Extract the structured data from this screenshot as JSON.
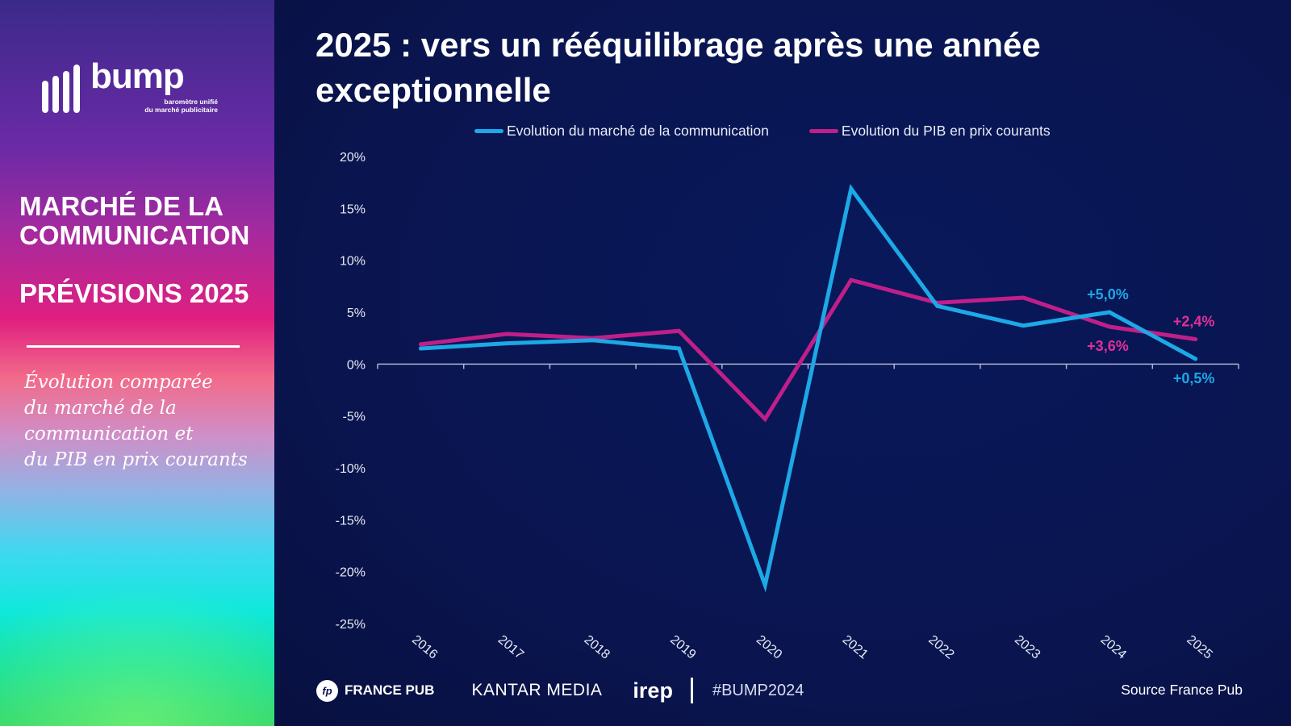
{
  "sidebar": {
    "logo_word": "bump",
    "logo_tagline_1": "baromètre unifié",
    "logo_tagline_2": "du marché publicitaire",
    "heading_line1": "MARCHÉ DE LA",
    "heading_line2": "COMMUNICATION",
    "subheading": "PRÉVISIONS 2025",
    "description_lines": [
      "Évolution comparée",
      "du marché de la",
      "communication et",
      "du PIB en prix courants"
    ]
  },
  "footer": {
    "france_pub_icon": "fp",
    "france_pub_label": "FRANCE PUB",
    "kantar_label": "KANTAR MEDIA",
    "irep_label": "irep",
    "hashtag": "#BUMP2024",
    "source": "Source France Pub"
  },
  "colors": {
    "market_series": "#1da8e6",
    "gdp_series": "#c01f8a",
    "background": "#0a1550",
    "axis": "#aab4d2"
  },
  "chart_data": {
    "type": "line",
    "title": "2025 : vers un rééquilibrage après une année exceptionnelle",
    "xlabel": "",
    "ylabel": "",
    "x": [
      "2016",
      "2017",
      "2018",
      "2019",
      "2020",
      "2021",
      "2022",
      "2023",
      "2024",
      "2025"
    ],
    "ylim": [
      -25,
      20
    ],
    "yticks": [
      20,
      15,
      10,
      5,
      0,
      -5,
      -10,
      -15,
      -20,
      -25
    ],
    "ytick_labels": [
      "20%",
      "15%",
      "10%",
      "5%",
      "0%",
      "-5%",
      "-10%",
      "-15%",
      "-20%",
      "-25%"
    ],
    "grid": false,
    "legend_position": "top",
    "series": [
      {
        "name": "Evolution du marché de la communication",
        "color": "#1da8e6",
        "values": [
          1.5,
          2.0,
          2.3,
          1.5,
          -21.3,
          16.9,
          5.6,
          3.7,
          5.0,
          0.5
        ]
      },
      {
        "name": "Evolution du PIB en prix courants",
        "color": "#c01f8a",
        "values": [
          1.9,
          2.9,
          2.5,
          3.2,
          -5.3,
          8.1,
          5.9,
          6.4,
          3.6,
          2.4
        ]
      }
    ],
    "annotations": [
      {
        "text": "+5,0%",
        "series": 0,
        "x": "2024",
        "y": 5.0,
        "position": "above",
        "color": "#1da8e6"
      },
      {
        "text": "+0,5%",
        "series": 0,
        "x": "2025",
        "y": 0.5,
        "position": "below",
        "color": "#1da8e6"
      },
      {
        "text": "+3,6%",
        "series": 1,
        "x": "2024",
        "y": 3.6,
        "position": "below",
        "color": "#e0309a"
      },
      {
        "text": "+2,4%",
        "series": 1,
        "x": "2025",
        "y": 2.4,
        "position": "above",
        "color": "#e0309a"
      }
    ]
  }
}
